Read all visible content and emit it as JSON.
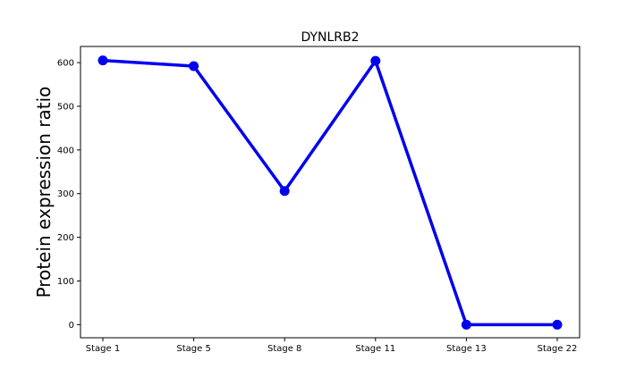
{
  "chart_data": {
    "type": "line",
    "title": "DYNLRB2",
    "xlabel": "",
    "ylabel": "Protein expression ratio",
    "categories": [
      "Stage 1",
      "Stage 5",
      "Stage 8",
      "Stage 11",
      "Stage 13",
      "Stage 22"
    ],
    "series": [
      {
        "values": [
          605,
          592,
          306,
          604,
          0,
          0
        ],
        "color": "#0000ee"
      }
    ],
    "ylim": [
      -30,
      637
    ],
    "yticks": [
      0,
      100,
      200,
      300,
      400,
      500,
      600
    ],
    "grid": false,
    "legend": "none"
  }
}
